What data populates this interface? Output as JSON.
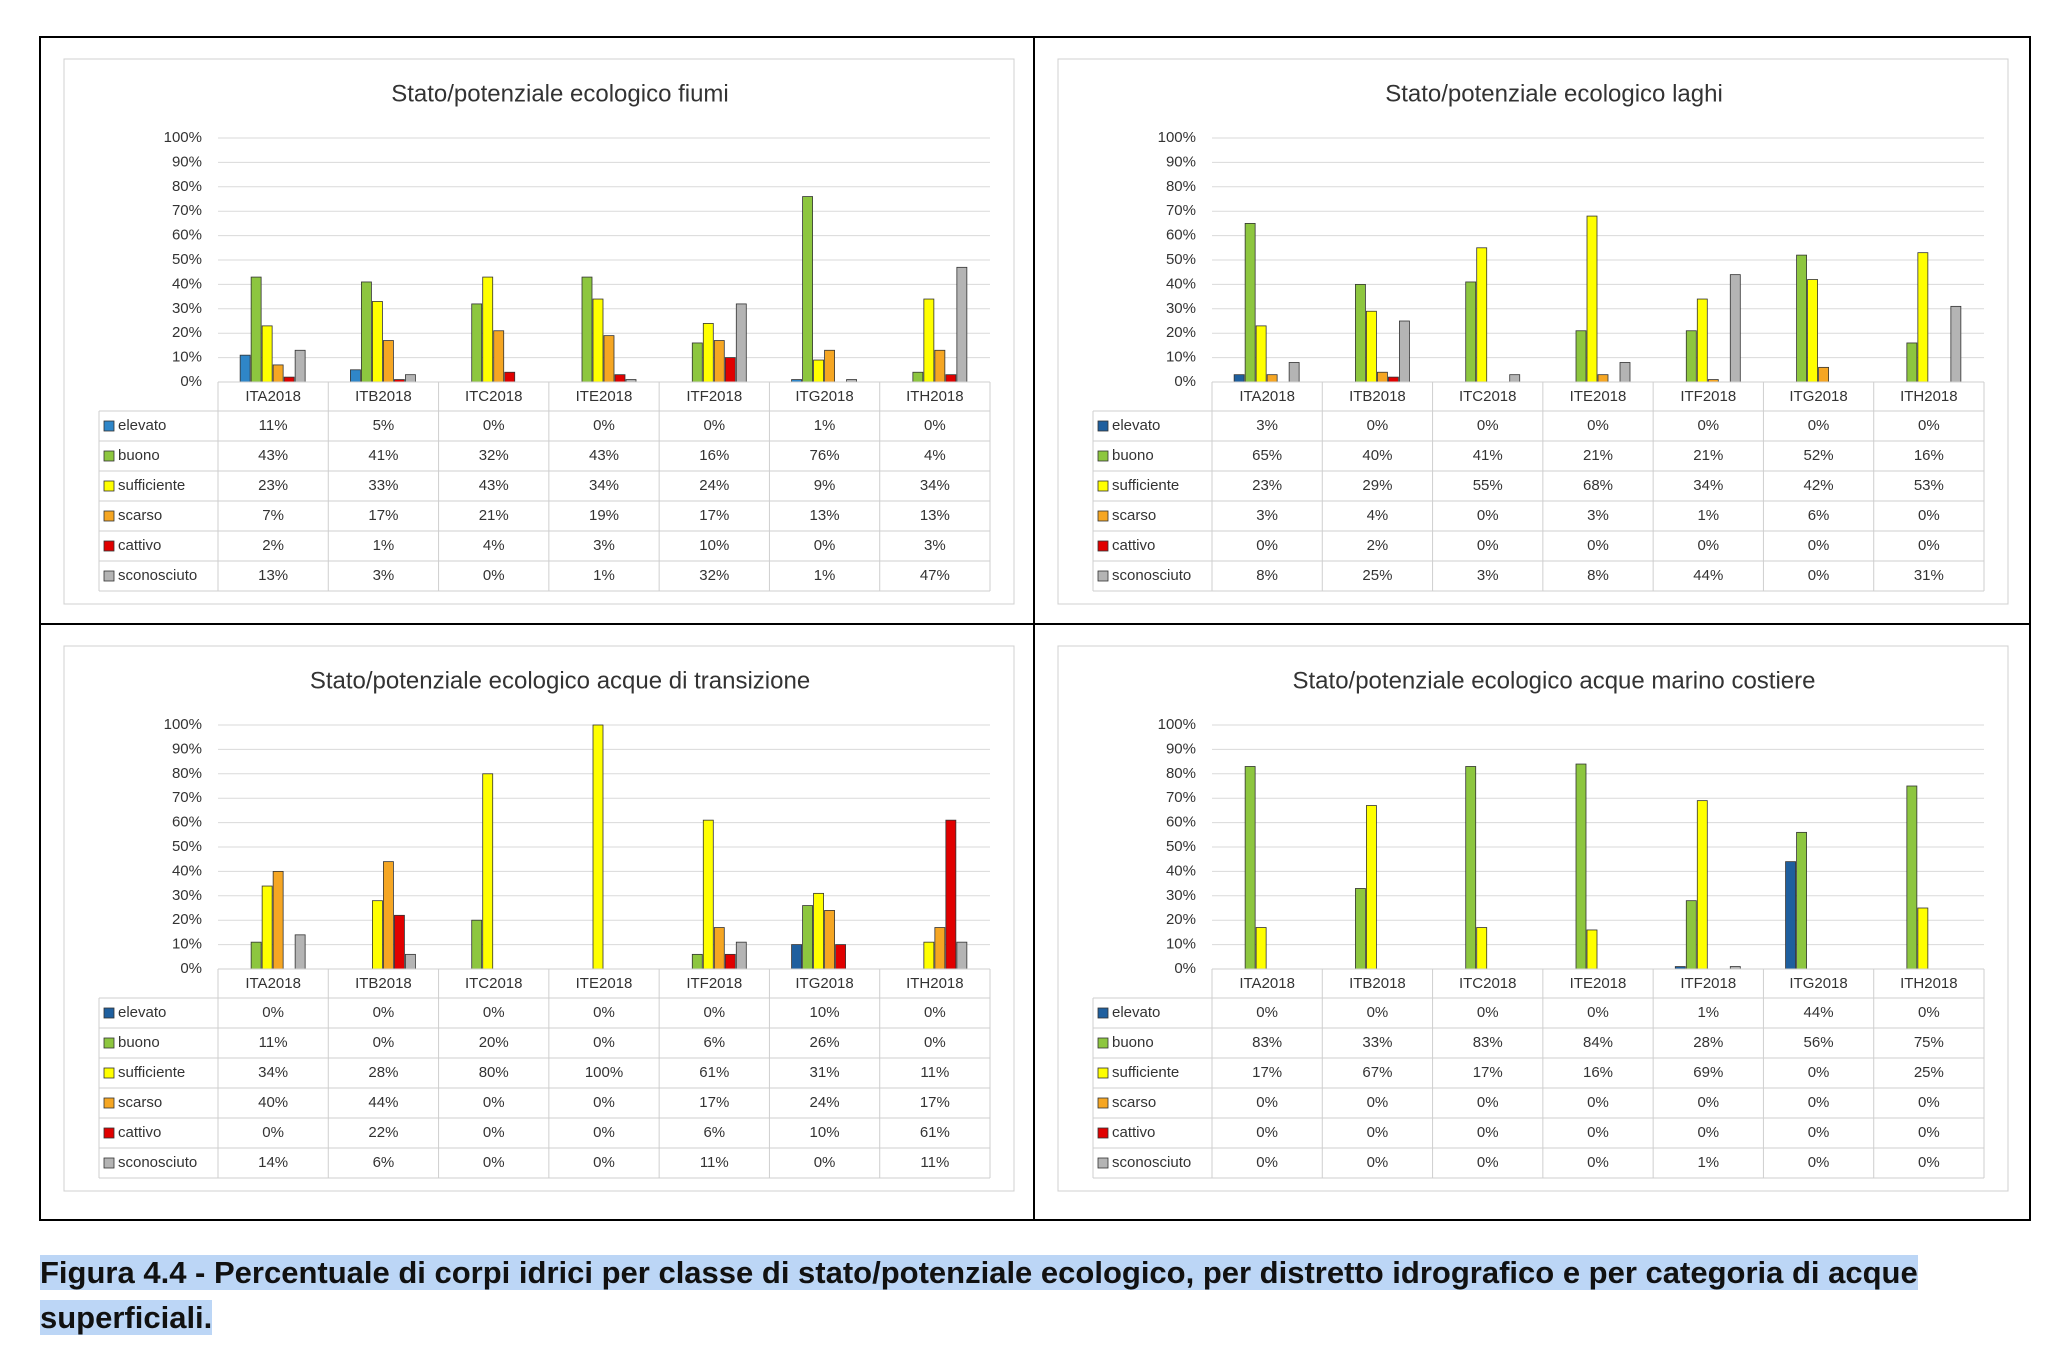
{
  "chart_data": [
    {
      "type": "bar",
      "title": "Stato/potenziale ecologico fiumi",
      "categories": [
        "ITA2018",
        "ITB2018",
        "ITC2018",
        "ITE2018",
        "ITF2018",
        "ITG2018",
        "ITH2018"
      ],
      "ylim": [
        0,
        100
      ],
      "grid": true,
      "yticks": [
        {
          "value": 0,
          "label": "0%"
        },
        {
          "value": 10,
          "label": "10%"
        },
        {
          "value": 20,
          "label": "20%"
        },
        {
          "value": 30,
          "label": "30%"
        },
        {
          "value": 40,
          "label": "40%"
        },
        {
          "value": 50,
          "label": "50%"
        },
        {
          "value": 60,
          "label": "60%"
        },
        {
          "value": 70,
          "label": "70%"
        },
        {
          "value": 80,
          "label": "80%"
        },
        {
          "value": 90,
          "label": "90%"
        },
        {
          "value": 100,
          "label": "100%"
        }
      ],
      "series": [
        {
          "name": "elevato",
          "color": "#2f86c8",
          "values": [
            11,
            5,
            0,
            0,
            0,
            1,
            0
          ],
          "value_labels": [
            "11%",
            "5%",
            "0%",
            "0%",
            "0%",
            "1%",
            "0%"
          ]
        },
        {
          "name": "buono",
          "color": "#8dc63f",
          "values": [
            43,
            41,
            32,
            43,
            16,
            76,
            4
          ],
          "value_labels": [
            "43%",
            "41%",
            "32%",
            "43%",
            "16%",
            "76%",
            "4%"
          ]
        },
        {
          "name": "sufficiente",
          "color": "#ffff00",
          "values": [
            23,
            33,
            43,
            34,
            24,
            9,
            34
          ],
          "value_labels": [
            "23%",
            "33%",
            "43%",
            "34%",
            "24%",
            "9%",
            "34%"
          ]
        },
        {
          "name": "scarso",
          "color": "#f5a623",
          "values": [
            7,
            17,
            21,
            19,
            17,
            13,
            13
          ],
          "value_labels": [
            "7%",
            "17%",
            "21%",
            "19%",
            "17%",
            "13%",
            "13%"
          ]
        },
        {
          "name": "cattivo",
          "color": "#e00000",
          "values": [
            2,
            1,
            4,
            3,
            10,
            0,
            3
          ],
          "value_labels": [
            "2%",
            "1%",
            "4%",
            "3%",
            "10%",
            "0%",
            "3%"
          ]
        },
        {
          "name": "sconosciuto",
          "color": "#b4b4b4",
          "values": [
            13,
            3,
            0,
            1,
            32,
            1,
            47
          ],
          "value_labels": [
            "13%",
            "3%",
            "0%",
            "1%",
            "32%",
            "1%",
            "47%"
          ]
        }
      ]
    },
    {
      "type": "bar",
      "title": "Stato/potenziale ecologico laghi",
      "categories": [
        "ITA2018",
        "ITB2018",
        "ITC2018",
        "ITE2018",
        "ITF2018",
        "ITG2018",
        "ITH2018"
      ],
      "ylim": [
        0,
        100
      ],
      "grid": true,
      "yticks": [
        {
          "value": 0,
          "label": "0%"
        },
        {
          "value": 10,
          "label": "10%"
        },
        {
          "value": 20,
          "label": "20%"
        },
        {
          "value": 30,
          "label": "30%"
        },
        {
          "value": 40,
          "label": "40%"
        },
        {
          "value": 50,
          "label": "50%"
        },
        {
          "value": 60,
          "label": "60%"
        },
        {
          "value": 70,
          "label": "70%"
        },
        {
          "value": 80,
          "label": "80%"
        },
        {
          "value": 90,
          "label": "90%"
        },
        {
          "value": 100,
          "label": "100%"
        }
      ],
      "series": [
        {
          "name": "elevato",
          "color": "#1f5f9e",
          "values": [
            3,
            0,
            0,
            0,
            0,
            0,
            0
          ],
          "value_labels": [
            "3%",
            "0%",
            "0%",
            "0%",
            "0%",
            "0%",
            "0%"
          ]
        },
        {
          "name": "buono",
          "color": "#8dc63f",
          "values": [
            65,
            40,
            41,
            21,
            21,
            52,
            16
          ],
          "value_labels": [
            "65%",
            "40%",
            "41%",
            "21%",
            "21%",
            "52%",
            "16%"
          ]
        },
        {
          "name": "sufficiente",
          "color": "#ffff00",
          "values": [
            23,
            29,
            55,
            68,
            34,
            42,
            53
          ],
          "value_labels": [
            "23%",
            "29%",
            "55%",
            "68%",
            "34%",
            "42%",
            "53%"
          ]
        },
        {
          "name": "scarso",
          "color": "#f5a623",
          "values": [
            3,
            4,
            0,
            3,
            1,
            6,
            0
          ],
          "value_labels": [
            "3%",
            "4%",
            "0%",
            "3%",
            "1%",
            "6%",
            "0%"
          ]
        },
        {
          "name": "cattivo",
          "color": "#e00000",
          "values": [
            0,
            2,
            0,
            0,
            0,
            0,
            0
          ],
          "value_labels": [
            "0%",
            "2%",
            "0%",
            "0%",
            "0%",
            "0%",
            "0%"
          ]
        },
        {
          "name": "sconosciuto",
          "color": "#b4b4b4",
          "values": [
            8,
            25,
            3,
            8,
            44,
            0,
            31
          ],
          "value_labels": [
            "8%",
            "25%",
            "3%",
            "8%",
            "44%",
            "0%",
            "31%"
          ]
        }
      ]
    },
    {
      "type": "bar",
      "title": "Stato/potenziale ecologico acque di transizione",
      "categories": [
        "ITA2018",
        "ITB2018",
        "ITC2018",
        "ITE2018",
        "ITF2018",
        "ITG2018",
        "ITH2018"
      ],
      "ylim": [
        0,
        100
      ],
      "grid": true,
      "yticks": [
        {
          "value": 0,
          "label": "0%"
        },
        {
          "value": 10,
          "label": "10%"
        },
        {
          "value": 20,
          "label": "20%"
        },
        {
          "value": 30,
          "label": "30%"
        },
        {
          "value": 40,
          "label": "40%"
        },
        {
          "value": 50,
          "label": "50%"
        },
        {
          "value": 60,
          "label": "60%"
        },
        {
          "value": 70,
          "label": "70%"
        },
        {
          "value": 80,
          "label": "80%"
        },
        {
          "value": 90,
          "label": "90%"
        },
        {
          "value": 100,
          "label": "100%"
        }
      ],
      "series": [
        {
          "name": "elevato",
          "color": "#1f5f9e",
          "values": [
            0,
            0,
            0,
            0,
            0,
            10,
            0
          ],
          "value_labels": [
            "0%",
            "0%",
            "0%",
            "0%",
            "0%",
            "10%",
            "0%"
          ]
        },
        {
          "name": "buono",
          "color": "#8dc63f",
          "values": [
            11,
            0,
            20,
            0,
            6,
            26,
            0
          ],
          "value_labels": [
            "11%",
            "0%",
            "20%",
            "0%",
            "6%",
            "26%",
            "0%"
          ]
        },
        {
          "name": "sufficiente",
          "color": "#ffff00",
          "values": [
            34,
            28,
            80,
            100,
            61,
            31,
            11
          ],
          "value_labels": [
            "34%",
            "28%",
            "80%",
            "100%",
            "61%",
            "31%",
            "11%"
          ]
        },
        {
          "name": "scarso",
          "color": "#f5a623",
          "values": [
            40,
            44,
            0,
            0,
            17,
            24,
            17
          ],
          "value_labels": [
            "40%",
            "44%",
            "0%",
            "0%",
            "17%",
            "24%",
            "17%"
          ]
        },
        {
          "name": "cattivo",
          "color": "#e00000",
          "values": [
            0,
            22,
            0,
            0,
            6,
            10,
            61
          ],
          "value_labels": [
            "0%",
            "22%",
            "0%",
            "0%",
            "6%",
            "10%",
            "61%"
          ]
        },
        {
          "name": "sconosciuto",
          "color": "#b4b4b4",
          "values": [
            14,
            6,
            0,
            0,
            11,
            0,
            11
          ],
          "value_labels": [
            "14%",
            "6%",
            "0%",
            "0%",
            "11%",
            "0%",
            "11%"
          ]
        }
      ]
    },
    {
      "type": "bar",
      "title": "Stato/potenziale ecologico acque marino costiere",
      "categories": [
        "ITA2018",
        "ITB2018",
        "ITC2018",
        "ITE2018",
        "ITF2018",
        "ITG2018",
        "ITH2018"
      ],
      "ylim": [
        0,
        100
      ],
      "grid": true,
      "yticks": [
        {
          "value": 0,
          "label": "0%"
        },
        {
          "value": 10,
          "label": "10%"
        },
        {
          "value": 20,
          "label": "20%"
        },
        {
          "value": 30,
          "label": "30%"
        },
        {
          "value": 40,
          "label": "40%"
        },
        {
          "value": 50,
          "label": "50%"
        },
        {
          "value": 60,
          "label": "60%"
        },
        {
          "value": 70,
          "label": "70%"
        },
        {
          "value": 80,
          "label": "80%"
        },
        {
          "value": 90,
          "label": "90%"
        },
        {
          "value": 100,
          "label": "100%"
        }
      ],
      "series": [
        {
          "name": "elevato",
          "color": "#1f5f9e",
          "values": [
            0,
            0,
            0,
            0,
            1,
            44,
            0
          ],
          "value_labels": [
            "0%",
            "0%",
            "0%",
            "0%",
            "1%",
            "44%",
            "0%"
          ]
        },
        {
          "name": "buono",
          "color": "#8dc63f",
          "values": [
            83,
            33,
            83,
            84,
            28,
            56,
            75
          ],
          "value_labels": [
            "83%",
            "33%",
            "83%",
            "84%",
            "28%",
            "56%",
            "75%"
          ]
        },
        {
          "name": "sufficiente",
          "color": "#ffff00",
          "values": [
            17,
            67,
            17,
            16,
            69,
            0,
            25
          ],
          "value_labels": [
            "17%",
            "67%",
            "17%",
            "16%",
            "69%",
            "0%",
            "25%"
          ]
        },
        {
          "name": "scarso",
          "color": "#f5a623",
          "values": [
            0,
            0,
            0,
            0,
            0,
            0,
            0
          ],
          "value_labels": [
            "0%",
            "0%",
            "0%",
            "0%",
            "0%",
            "0%",
            "0%"
          ]
        },
        {
          "name": "cattivo",
          "color": "#e00000",
          "values": [
            0,
            0,
            0,
            0,
            0,
            0,
            0
          ],
          "value_labels": [
            "0%",
            "0%",
            "0%",
            "0%",
            "0%",
            "0%",
            "0%"
          ]
        },
        {
          "name": "sconosciuto",
          "color": "#b4b4b4",
          "values": [
            0,
            0,
            0,
            0,
            1,
            0,
            0
          ],
          "value_labels": [
            "0%",
            "0%",
            "0%",
            "0%",
            "1%",
            "0%",
            "0%"
          ]
        }
      ]
    }
  ],
  "caption": "Figura 4.4 - Percentuale di corpi idrici per classe di stato/potenziale ecologico, per distretto idrografico e per categoria di acque superficiali."
}
